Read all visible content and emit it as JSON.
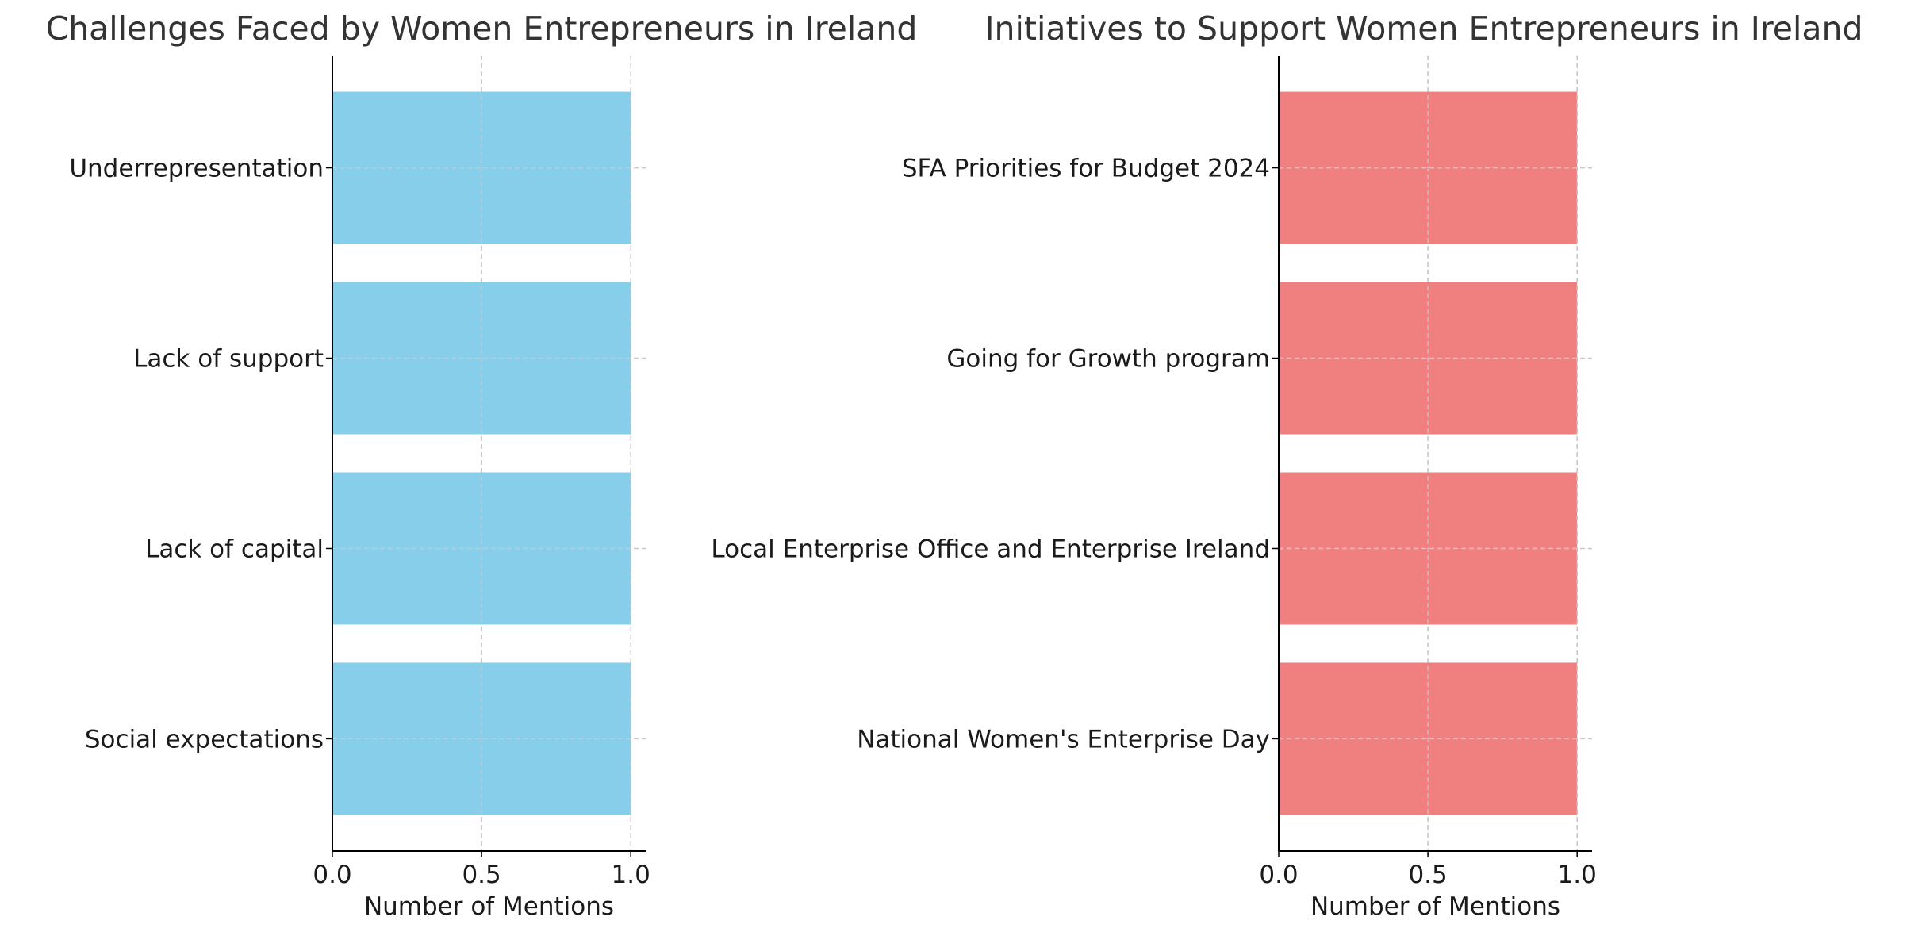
{
  "chart_data": [
    {
      "type": "bar",
      "orientation": "horizontal",
      "title": "Challenges Faced by Women Entrepreneurs in Ireland",
      "xlabel": "Number of Mentions",
      "ylabel": "",
      "categories": [
        "Underrepresentation",
        "Lack of support",
        "Lack of capital",
        "Social expectations"
      ],
      "values": [
        1,
        1,
        1,
        1
      ],
      "xlim": [
        0,
        1.05
      ],
      "xticks": [
        "0.0",
        "0.5",
        "1.0"
      ],
      "color": "#87CEEB",
      "grid": true
    },
    {
      "type": "bar",
      "orientation": "horizontal",
      "title": "Initiatives to Support Women Entrepreneurs in Ireland",
      "xlabel": "Number of Mentions",
      "ylabel": "",
      "categories": [
        "SFA Priorities for Budget 2024",
        "Going for Growth program",
        "Local Enterprise Office and Enterprise Ireland",
        "National Women's Enterprise Day"
      ],
      "values": [
        1,
        1,
        1,
        1
      ],
      "xlim": [
        0,
        1.05
      ],
      "xticks": [
        "0.0",
        "0.5",
        "1.0"
      ],
      "color": "#F08080",
      "grid": true
    }
  ]
}
